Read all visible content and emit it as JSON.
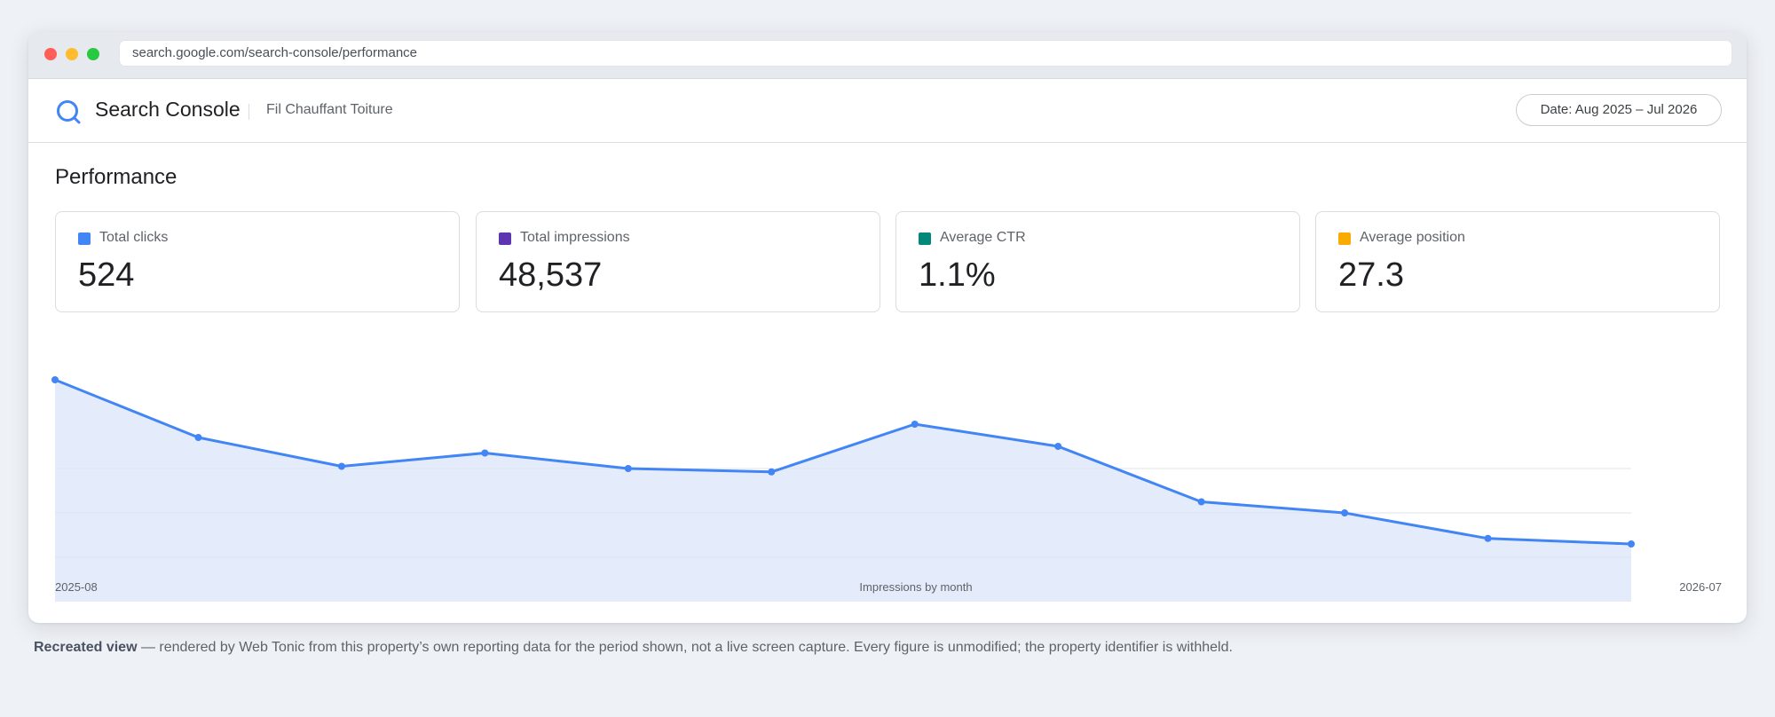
{
  "browser": {
    "url": "search.google.com/search-console/performance"
  },
  "header": {
    "app_title": "Search Console",
    "property_name": "Fil Chauffant Toiture",
    "date_range": "Date: Aug 2025 – Jul 2026",
    "logo_icon": "search-console-logo-icon"
  },
  "main": {
    "title": "Performance",
    "metrics": [
      {
        "label": "Total clicks",
        "value": "524",
        "color": "#4285f4"
      },
      {
        "label": "Total impressions",
        "value": "48,537",
        "color": "#5e35b1"
      },
      {
        "label": "Average CTR",
        "value": "1.1%",
        "color": "#00897b"
      },
      {
        "label": "Average position",
        "value": "27.3",
        "color": "#f9ab00"
      }
    ]
  },
  "chart_data": {
    "type": "area",
    "title": "",
    "xlabel": "Impressions by month",
    "ylabel": "",
    "x_ticks": [
      "2025-08",
      "2026-07"
    ],
    "x": [
      "2025-08",
      "2025-09",
      "2025-10",
      "2025-11",
      "2025-12",
      "2026-01",
      "2026-02",
      "2026-03",
      "2026-04",
      "2026-05",
      "2026-06",
      "2026-07"
    ],
    "series": [
      {
        "values": [
          1.0,
          0.74,
          0.61,
          0.67,
          0.6,
          0.585,
          0.8,
          0.7,
          0.45,
          0.4,
          0.285,
          0.26
        ],
        "color": "#4285f4",
        "fill": "#e4ecfc"
      }
    ],
    "ylim": [
      0,
      1
    ],
    "y_axis_labels": false,
    "grid": true
  },
  "footer": {
    "caption_bold": "Recreated view",
    "caption_text": " — rendered by Web Tonic from this property’s own reporting data for the period shown, not a live screen capture. Every figure is unmodified; the property identifier is withheld."
  }
}
